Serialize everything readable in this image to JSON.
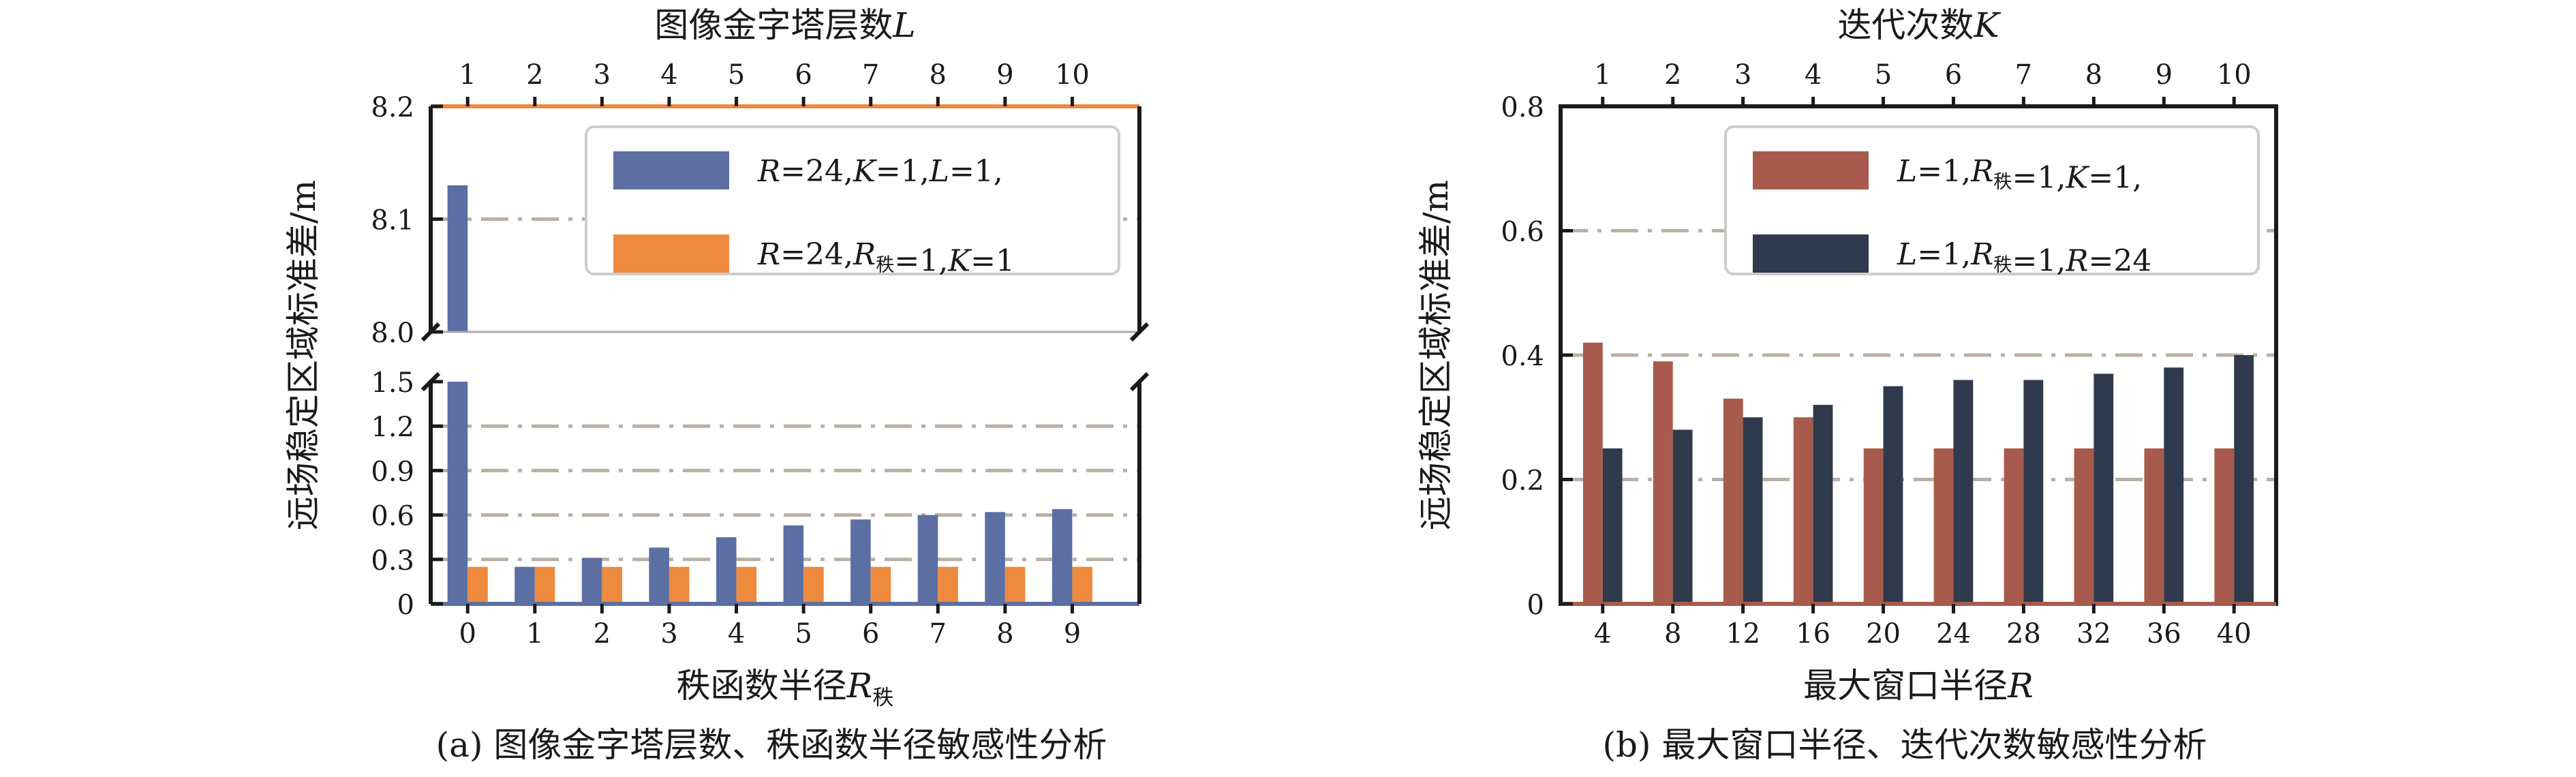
{
  "chart_data": [
    {
      "id": "a",
      "type": "bar",
      "caption": "(a) 图像金字塔层数、秩函数半径敏感性分析",
      "xlabel": {
        "main": "秩函数半径",
        "var": "R",
        "sub": "秩"
      },
      "x2label": {
        "main": "图像金字塔层数",
        "var": "L"
      },
      "ylabel": "远场稳定区域标准差/m",
      "categories": [
        "0",
        "1",
        "2",
        "3",
        "4",
        "5",
        "6",
        "7",
        "8",
        "9"
      ],
      "top_categories": [
        "1",
        "2",
        "3",
        "4",
        "5",
        "6",
        "7",
        "8",
        "9",
        "10"
      ],
      "axis_break": true,
      "ylim_lower": [
        0,
        1.5
      ],
      "ylim_upper": [
        8.0,
        8.2
      ],
      "yticks_lower": [
        "0",
        "0.3",
        "0.6",
        "0.9",
        "1.2",
        "1.5"
      ],
      "yticks_upper": [
        "8.0",
        "8.1",
        "8.2"
      ],
      "grid": true,
      "legend_position": "top-right",
      "series": [
        {
          "legend": [
            {
              "t": "R",
              "i": true
            },
            {
              "t": "=24,"
            },
            {
              "t": "K",
              "i": true
            },
            {
              "t": "=1,"
            },
            {
              "t": "L",
              "i": true
            },
            {
              "t": "=1,"
            }
          ],
          "color": "#5b6fa3",
          "values": [
            8.13,
            0.25,
            0.31,
            0.38,
            0.45,
            0.53,
            0.57,
            0.6,
            0.62,
            0.64
          ]
        },
        {
          "legend": [
            {
              "t": "R",
              "i": true
            },
            {
              "t": "=24,"
            },
            {
              "t": "R",
              "i": true
            },
            {
              "t": "秩",
              "sub": true
            },
            {
              "t": "=1,"
            },
            {
              "t": "K",
              "i": true
            },
            {
              "t": "=1"
            }
          ],
          "color": "#ee8a3e",
          "values": [
            0.25,
            0.25,
            0.25,
            0.25,
            0.25,
            0.25,
            0.25,
            0.25,
            0.25,
            0.25
          ]
        }
      ]
    },
    {
      "id": "b",
      "type": "bar",
      "caption": "(b) 最大窗口半径、迭代次数敏感性分析",
      "xlabel": {
        "main": "最大窗口半径",
        "var": "R"
      },
      "x2label": {
        "main": "迭代次数",
        "var": "K"
      },
      "ylabel": "远场稳定区域标准差/m",
      "categories": [
        "4",
        "8",
        "12",
        "16",
        "20",
        "24",
        "28",
        "32",
        "36",
        "40"
      ],
      "top_categories": [
        "1",
        "2",
        "3",
        "4",
        "5",
        "6",
        "7",
        "8",
        "9",
        "10"
      ],
      "ylim": [
        0,
        0.8
      ],
      "yticks": [
        "0",
        "0.2",
        "0.4",
        "0.6",
        "0.8"
      ],
      "grid": true,
      "legend_position": "top-right",
      "series": [
        {
          "legend": [
            {
              "t": "L",
              "i": true
            },
            {
              "t": "=1,"
            },
            {
              "t": "R",
              "i": true
            },
            {
              "t": "秩",
              "sub": true
            },
            {
              "t": "=1,"
            },
            {
              "t": "K",
              "i": true
            },
            {
              "t": "=1,"
            }
          ],
          "color": "#a85b4c",
          "values": [
            0.42,
            0.39,
            0.33,
            0.3,
            0.25,
            0.25,
            0.25,
            0.25,
            0.25,
            0.25
          ]
        },
        {
          "legend": [
            {
              "t": "L",
              "i": true
            },
            {
              "t": "=1,"
            },
            {
              "t": "R",
              "i": true
            },
            {
              "t": "秩",
              "sub": true
            },
            {
              "t": "=1,"
            },
            {
              "t": "R",
              "i": true
            },
            {
              "t": "=24"
            }
          ],
          "color": "#2f3a4c",
          "values": [
            0.25,
            0.28,
            0.3,
            0.32,
            0.35,
            0.36,
            0.36,
            0.37,
            0.38,
            0.4
          ]
        }
      ]
    }
  ]
}
